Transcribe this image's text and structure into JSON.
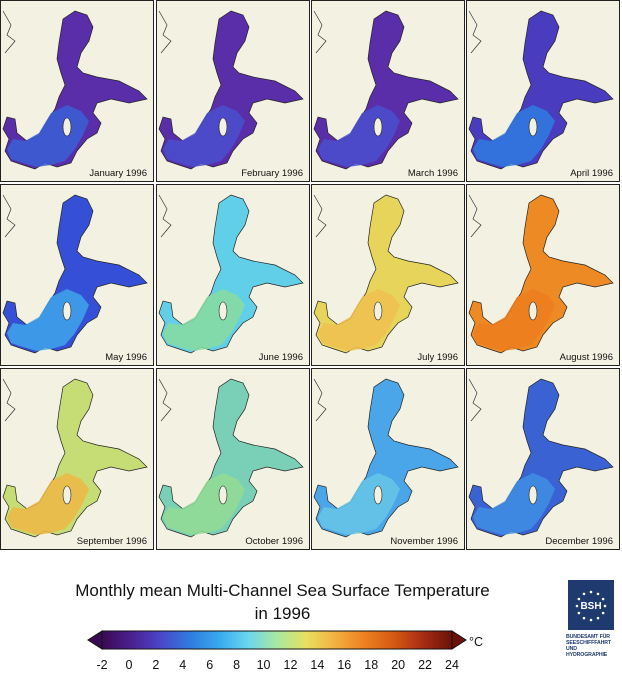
{
  "panels": [
    {
      "label": "January 1996",
      "color": "#5a2ea8",
      "south_color": "#3a5fd6"
    },
    {
      "label": "February 1996",
      "color": "#5a2ea8",
      "south_color": "#4a4fcf"
    },
    {
      "label": "March 1996",
      "color": "#5a2ea8",
      "south_color": "#4a4fcf"
    },
    {
      "label": "April 1996",
      "color": "#4a3cbf",
      "south_color": "#2f7be0"
    },
    {
      "label": "May 1996",
      "color": "#3550d6",
      "south_color": "#3ea5ea"
    },
    {
      "label": "June 1996",
      "color": "#62cfe9",
      "south_color": "#88dca0"
    },
    {
      "label": "July 1996",
      "color": "#e6d55a",
      "south_color": "#f0c050"
    },
    {
      "label": "August 1996",
      "color": "#ee8a24",
      "south_color": "#ec7c1e"
    },
    {
      "label": "September 1996",
      "color": "#c6dc74",
      "south_color": "#eeb744"
    },
    {
      "label": "October 1996",
      "color": "#79d0b6",
      "south_color": "#94dc94"
    },
    {
      "label": "November 1996",
      "color": "#4aa6e8",
      "south_color": "#67c6e6"
    },
    {
      "label": "December 1996",
      "color": "#3a62d3",
      "south_color": "#3f8fe4"
    }
  ],
  "title_line1": "Monthly mean Multi-Channel Sea Surface Temperature",
  "title_line2": "in 1996",
  "colorbar": {
    "unit": "°C",
    "ticks": [
      "-2",
      "0",
      "2",
      "4",
      "6",
      "8",
      "10",
      "12",
      "14",
      "16",
      "18",
      "20",
      "22",
      "24"
    ],
    "min": -2,
    "max": 24,
    "colors": [
      "#3b0a55",
      "#4b2090",
      "#4b45c8",
      "#2f7be0",
      "#38a8ee",
      "#6ad6ee",
      "#a8e8a0",
      "#e8e060",
      "#f2b040",
      "#ee8020",
      "#d45a14",
      "#a82c14",
      "#6a1208"
    ]
  },
  "logo": {
    "text": "BSH",
    "line1": "BUNDESAMT FÜR",
    "line2": "SEESCHIFFFAHRT",
    "line3": "UND",
    "line4": "HYDROGRAPHIE"
  }
}
